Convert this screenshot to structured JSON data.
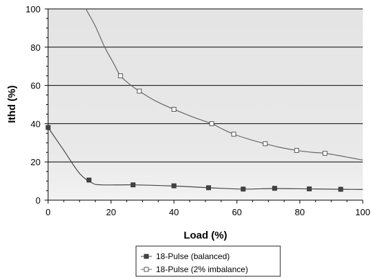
{
  "chart_data": {
    "type": "line",
    "title": "",
    "xlabel": "Load (%)",
    "ylabel": "Ithd (%)",
    "xlim": [
      0,
      100
    ],
    "ylim": [
      0,
      100
    ],
    "x_ticks": [
      "0",
      "20",
      "40",
      "60",
      "80",
      "100"
    ],
    "y_ticks": [
      "0",
      "20",
      "40",
      "60",
      "80",
      "100"
    ],
    "grid": "horizontal",
    "legend_position": "bottom",
    "series": [
      {
        "name": "18-Pulse (balanced)",
        "marker": "filled-square",
        "color": "#444444",
        "points": [
          [
            0,
            38
          ],
          [
            13,
            10.5
          ],
          [
            27,
            8
          ],
          [
            40,
            7.5
          ],
          [
            51,
            6.5
          ],
          [
            62,
            5.8
          ],
          [
            72,
            6.2
          ],
          [
            83,
            5.9
          ],
          [
            93,
            5.7
          ]
        ],
        "curve": [
          [
            0,
            38
          ],
          [
            5,
            26
          ],
          [
            10,
            14
          ],
          [
            14,
            9
          ],
          [
            17,
            8
          ],
          [
            27,
            8
          ],
          [
            40,
            7.4
          ],
          [
            51,
            6.5
          ],
          [
            62,
            5.8
          ],
          [
            72,
            6.1
          ],
          [
            83,
            5.9
          ],
          [
            93,
            5.7
          ],
          [
            100,
            5.6
          ]
        ]
      },
      {
        "name": "18-Pulse (2% imbalance)",
        "marker": "open-square",
        "color": "#666666",
        "points": [
          [
            23,
            65
          ],
          [
            29,
            57
          ],
          [
            40,
            47.5
          ],
          [
            52,
            40
          ],
          [
            59,
            34.5
          ],
          [
            69,
            29.5
          ],
          [
            79,
            26
          ],
          [
            88,
            24.5
          ]
        ],
        "curve": [
          [
            12,
            100
          ],
          [
            15,
            91
          ],
          [
            18,
            80
          ],
          [
            21,
            71
          ],
          [
            23,
            65
          ],
          [
            26,
            60.5
          ],
          [
            29,
            57
          ],
          [
            34,
            52
          ],
          [
            40,
            47.5
          ],
          [
            46,
            43.5
          ],
          [
            52,
            40
          ],
          [
            55,
            37.5
          ],
          [
            59,
            34.5
          ],
          [
            64,
            31.8
          ],
          [
            69,
            29.5
          ],
          [
            74,
            27.5
          ],
          [
            79,
            26
          ],
          [
            84,
            25
          ],
          [
            88,
            24.5
          ],
          [
            94,
            22.8
          ],
          [
            100,
            21
          ]
        ]
      }
    ]
  }
}
